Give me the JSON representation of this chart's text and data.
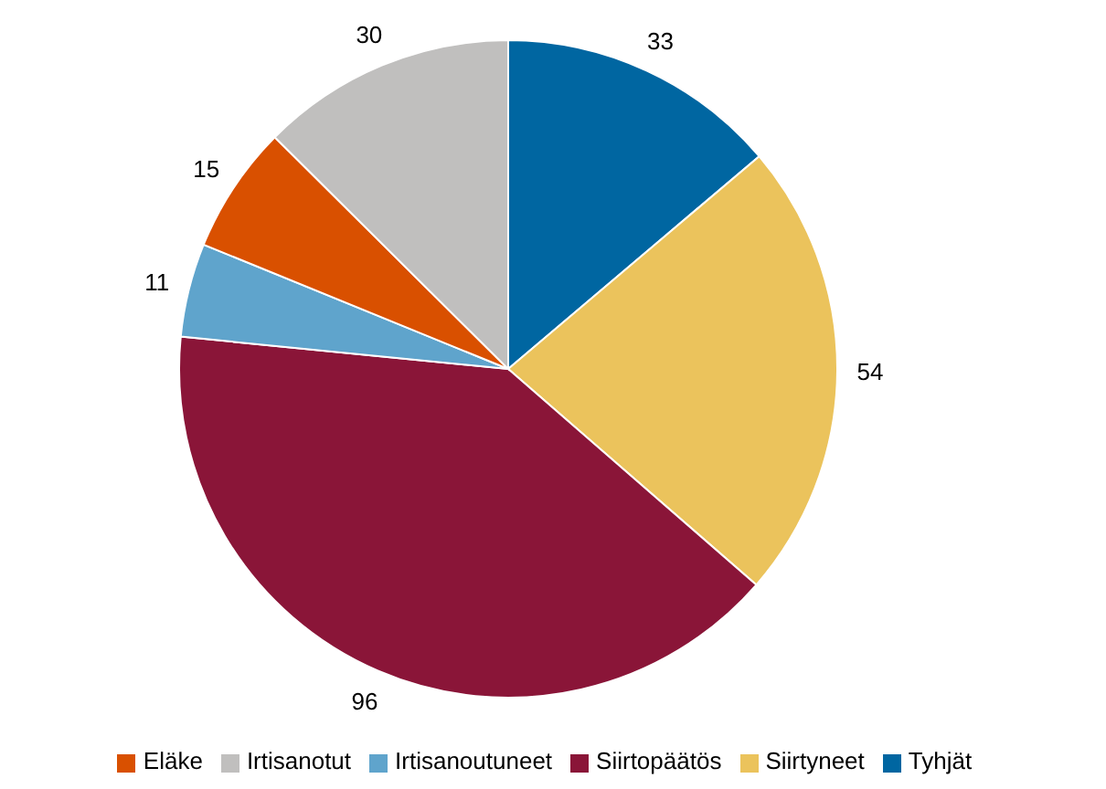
{
  "chart_data": {
    "type": "pie",
    "categories": [
      "Tyhjät",
      "Siirtyneet",
      "Siirtopäätös",
      "Irtisanoutuneet",
      "Eläke",
      "Irtisanotut"
    ],
    "values": [
      33,
      54,
      96,
      11,
      15,
      30
    ],
    "colors": [
      "#0066a1",
      "#ebc35c",
      "#8a1538",
      "#5fa4cc",
      "#d95000",
      "#c0bfbe"
    ],
    "data_labels": true,
    "legend": "bottom"
  }
}
